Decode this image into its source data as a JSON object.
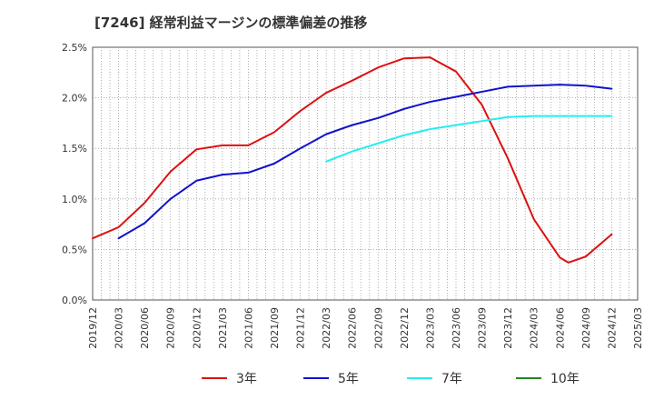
{
  "title": "[7246]  経常利益マージンの標準偏差の推移",
  "chart_data": {
    "type": "line",
    "title": "[7246]  経常利益マージンの標準偏差の推移",
    "xlabel": "",
    "ylabel": "",
    "ylim": [
      0,
      2.5
    ],
    "y_ticks": [
      "0.0%",
      "0.5%",
      "1.0%",
      "1.5%",
      "2.0%",
      "2.5%"
    ],
    "x_ticks": [
      "2019/12",
      "2020/03",
      "2020/06",
      "2020/09",
      "2020/12",
      "2021/03",
      "2021/06",
      "2021/09",
      "2021/12",
      "2022/03",
      "2022/06",
      "2022/09",
      "2022/12",
      "2023/03",
      "2023/06",
      "2023/09",
      "2023/12",
      "2024/03",
      "2024/06",
      "2024/09",
      "2024/12",
      "2025/03"
    ],
    "grid": true,
    "legend_position": "bottom",
    "series": [
      {
        "name": "3年",
        "color": "#dd1111",
        "points": [
          [
            "2019/12",
            0.61
          ],
          [
            "2020/03",
            0.72
          ],
          [
            "2020/06",
            0.96
          ],
          [
            "2020/09",
            1.27
          ],
          [
            "2020/12",
            1.49
          ],
          [
            "2021/03",
            1.53
          ],
          [
            "2021/06",
            1.53
          ],
          [
            "2021/09",
            1.66
          ],
          [
            "2021/12",
            1.87
          ],
          [
            "2022/03",
            2.05
          ],
          [
            "2022/06",
            2.17
          ],
          [
            "2022/09",
            2.3
          ],
          [
            "2022/12",
            2.39
          ],
          [
            "2023/03",
            2.4
          ],
          [
            "2023/06",
            2.26
          ],
          [
            "2023/09",
            1.93
          ],
          [
            "2023/12",
            1.4
          ],
          [
            "2024/03",
            0.8
          ],
          [
            "2024/06",
            0.42
          ],
          [
            "2024/07",
            0.37
          ],
          [
            "2024/09",
            0.43
          ],
          [
            "2024/12",
            0.65
          ]
        ]
      },
      {
        "name": "5年",
        "color": "#1111cc",
        "points": [
          [
            "2020/03",
            0.61
          ],
          [
            "2020/06",
            0.76
          ],
          [
            "2020/09",
            1.0
          ],
          [
            "2020/12",
            1.18
          ],
          [
            "2021/03",
            1.24
          ],
          [
            "2021/06",
            1.26
          ],
          [
            "2021/09",
            1.35
          ],
          [
            "2021/12",
            1.5
          ],
          [
            "2022/03",
            1.64
          ],
          [
            "2022/06",
            1.73
          ],
          [
            "2022/09",
            1.8
          ],
          [
            "2022/12",
            1.89
          ],
          [
            "2023/03",
            1.96
          ],
          [
            "2023/06",
            2.01
          ],
          [
            "2023/09",
            2.06
          ],
          [
            "2023/12",
            2.11
          ],
          [
            "2024/03",
            2.12
          ],
          [
            "2024/06",
            2.13
          ],
          [
            "2024/09",
            2.12
          ],
          [
            "2024/12",
            2.09
          ]
        ]
      },
      {
        "name": "7年",
        "color": "#22eeee",
        "points": [
          [
            "2022/03",
            1.37
          ],
          [
            "2022/06",
            1.47
          ],
          [
            "2022/09",
            1.55
          ],
          [
            "2022/12",
            1.63
          ],
          [
            "2023/03",
            1.69
          ],
          [
            "2023/06",
            1.73
          ],
          [
            "2023/09",
            1.77
          ],
          [
            "2023/12",
            1.81
          ],
          [
            "2024/03",
            1.82
          ],
          [
            "2024/06",
            1.82
          ],
          [
            "2024/09",
            1.82
          ],
          [
            "2024/12",
            1.82
          ]
        ]
      },
      {
        "name": "10年",
        "color": "#228822",
        "points": []
      }
    ]
  }
}
